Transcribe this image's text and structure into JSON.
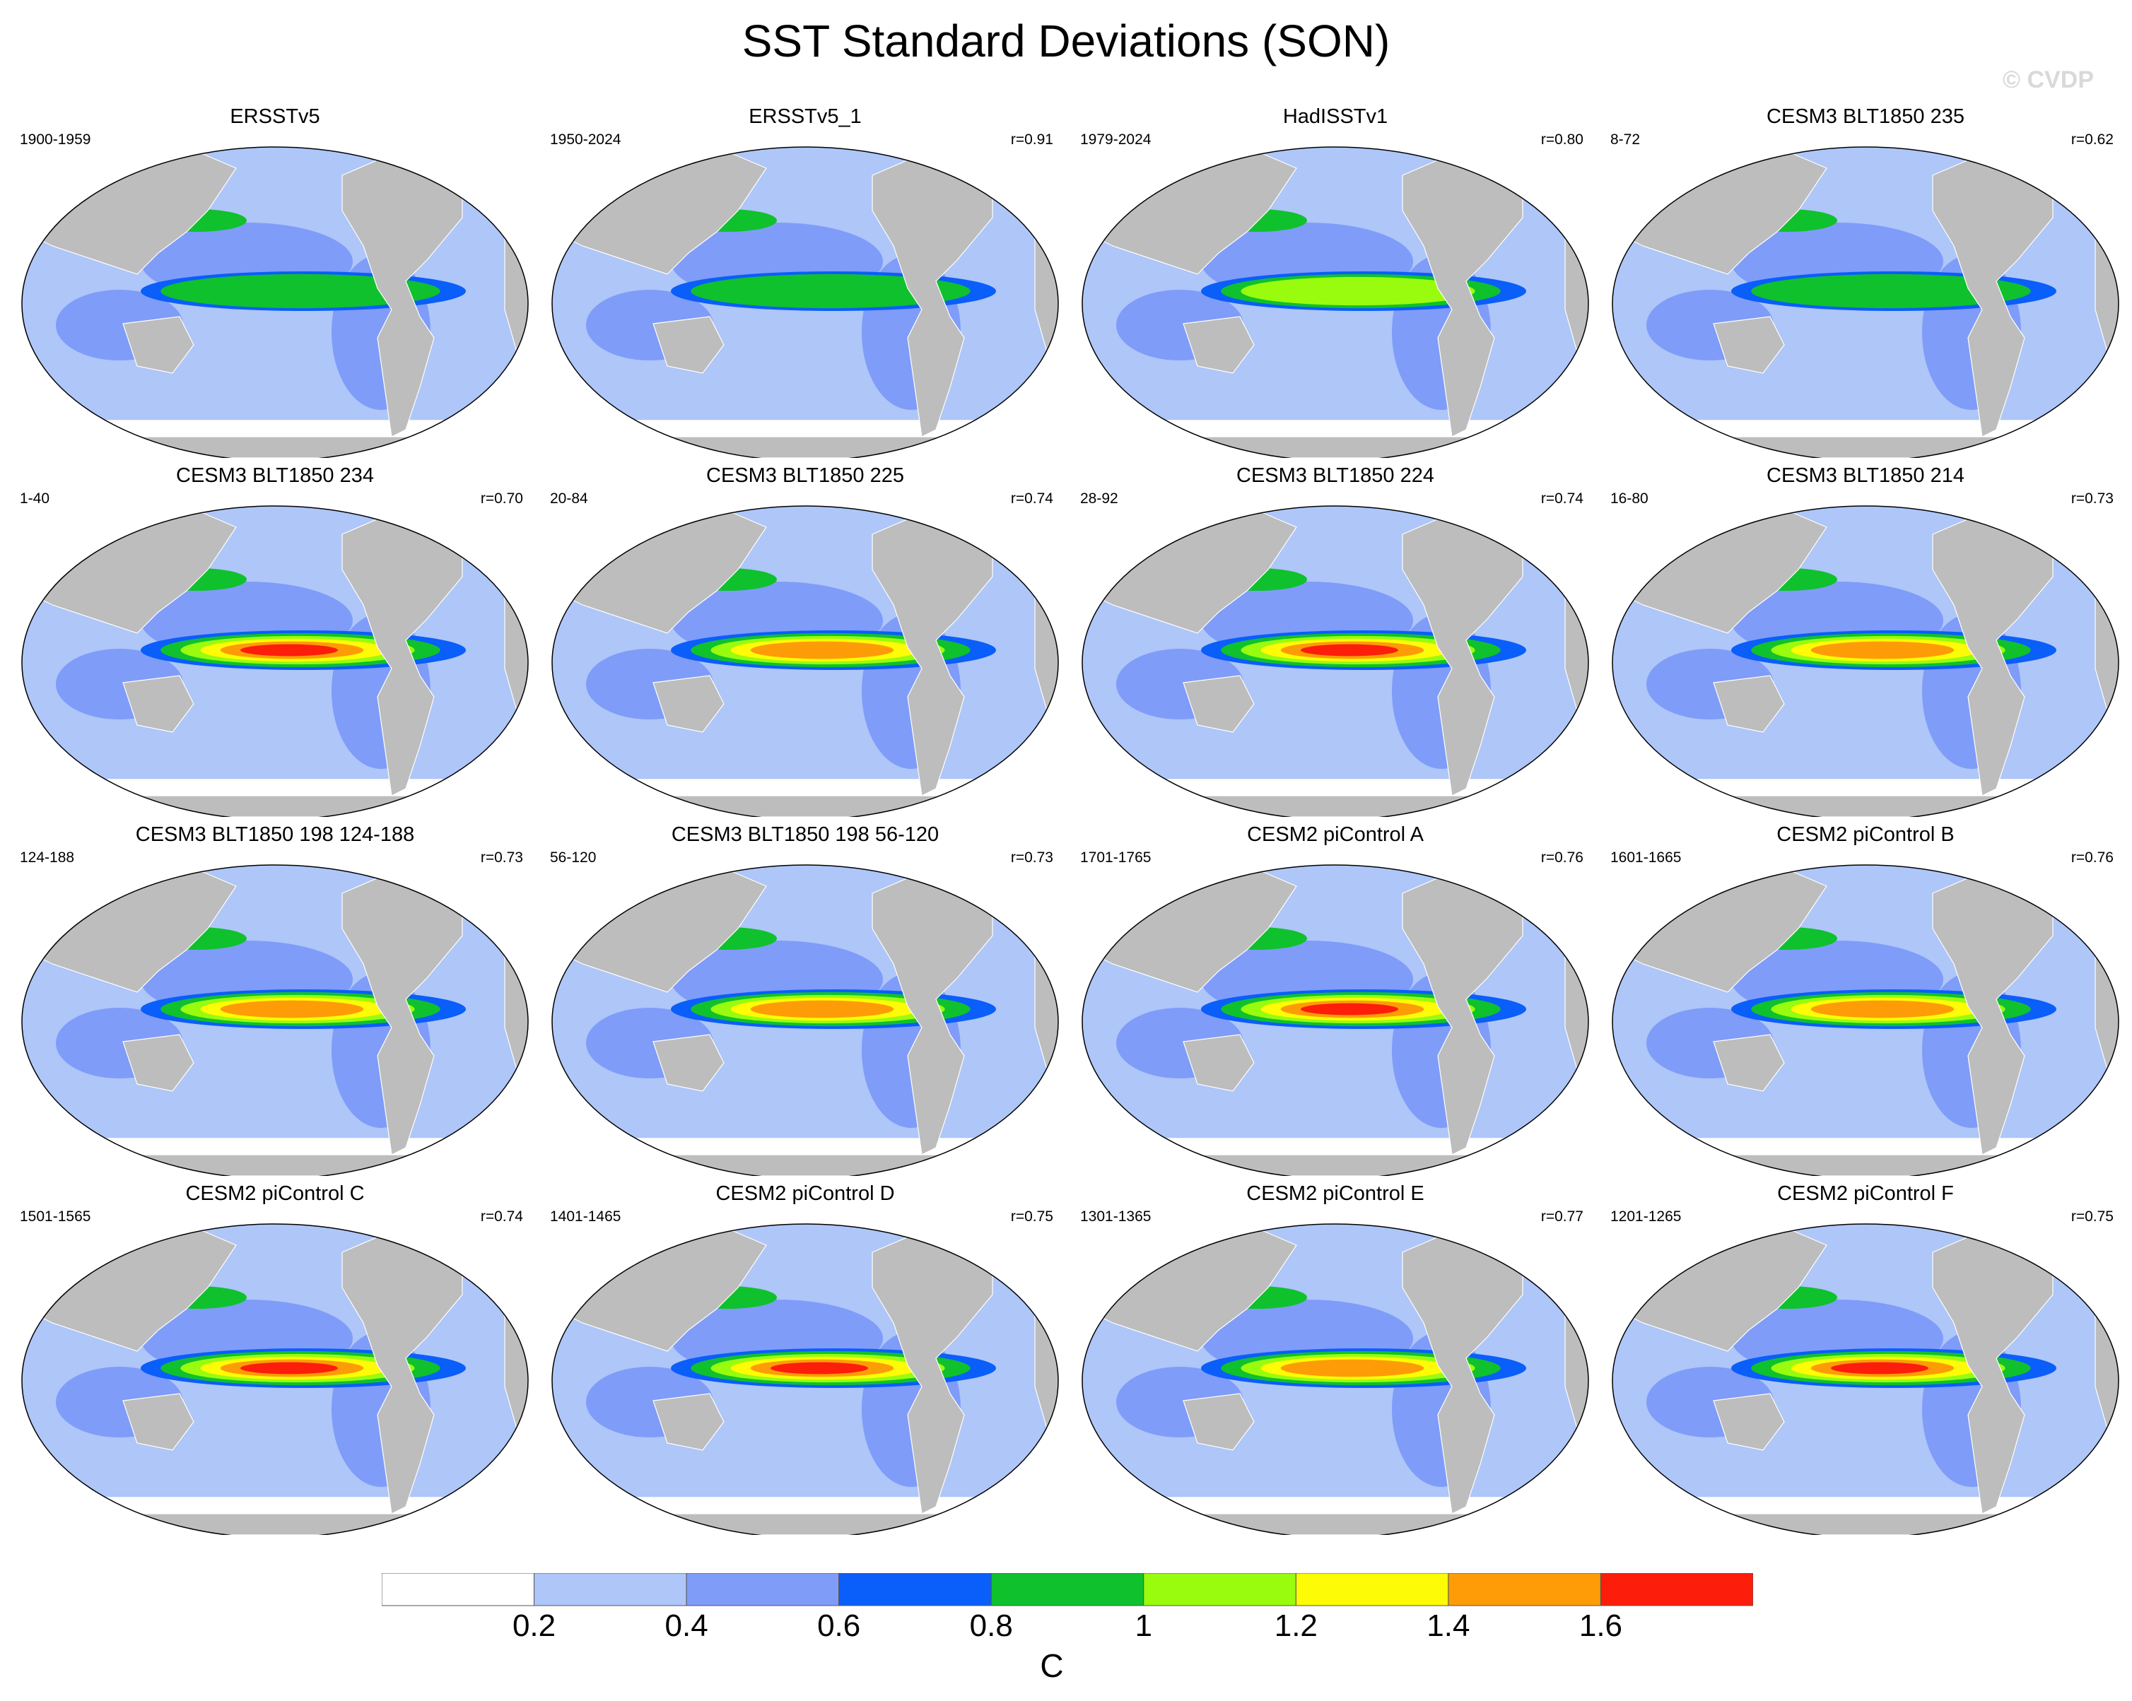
{
  "title": "SST Standard Deviations (SON)",
  "watermark": "© CVDP",
  "colors": {
    "land": "#bdbdbd",
    "ocean_background": "#aec6f8"
  },
  "panels": [
    {
      "title": "ERSSTv5",
      "period": "1900-1959",
      "r": "",
      "enso_strength": 0.9
    },
    {
      "title": "ERSSTv5_1",
      "period": "1950-2024",
      "r": "r=0.91",
      "enso_strength": 0.9
    },
    {
      "title": "HadISSTv1",
      "period": "1979-2024",
      "r": "r=0.80",
      "enso_strength": 1.0
    },
    {
      "title": "CESM3 BLT1850 235",
      "period": "8-72",
      "r": "r=0.62",
      "enso_strength": 0.8
    },
    {
      "title": "CESM3 BLT1850 234",
      "period": "1-40",
      "r": "r=0.70",
      "enso_strength": 1.6
    },
    {
      "title": "CESM3 BLT1850 225",
      "period": "20-84",
      "r": "r=0.74",
      "enso_strength": 1.5
    },
    {
      "title": "CESM3 BLT1850 224",
      "period": "28-92",
      "r": "r=0.74",
      "enso_strength": 1.6
    },
    {
      "title": "CESM3 BLT1850 214",
      "period": "16-80",
      "r": "r=0.73",
      "enso_strength": 1.5
    },
    {
      "title": "CESM3 BLT1850 198 124-188",
      "period": "124-188",
      "r": "r=0.73",
      "enso_strength": 1.5
    },
    {
      "title": "CESM3 BLT1850 198 56-120",
      "period": "56-120",
      "r": "r=0.73",
      "enso_strength": 1.5
    },
    {
      "title": "CESM2 piControl A",
      "period": "1701-1765",
      "r": "r=0.76",
      "enso_strength": 1.6
    },
    {
      "title": "CESM2 piControl B",
      "period": "1601-1665",
      "r": "r=0.76",
      "enso_strength": 1.5
    },
    {
      "title": "CESM2 piControl C",
      "period": "1501-1565",
      "r": "r=0.74",
      "enso_strength": 1.6
    },
    {
      "title": "CESM2 piControl D",
      "period": "1401-1465",
      "r": "r=0.75",
      "enso_strength": 1.6
    },
    {
      "title": "CESM2 piControl E",
      "period": "1301-1365",
      "r": "r=0.77",
      "enso_strength": 1.5
    },
    {
      "title": "CESM2 piControl F",
      "period": "1201-1265",
      "r": "r=0.75",
      "enso_strength": 1.6
    }
  ],
  "colorbar": {
    "units": "C",
    "labels": [
      "0.2",
      "0.4",
      "0.6",
      "0.8",
      "1",
      "1.2",
      "1.4",
      "1.6"
    ],
    "colors": [
      "#ffffff",
      "#aec6f8",
      "#7f9cf9",
      "#0a5ef9",
      "#0fc12c",
      "#99fb0e",
      "#fdfb05",
      "#fd9c06",
      "#fc1d0b"
    ]
  }
}
